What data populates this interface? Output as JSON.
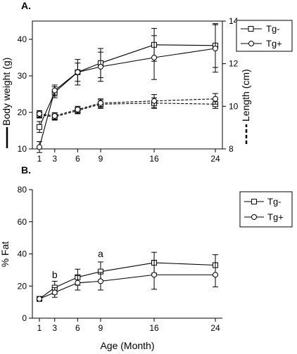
{
  "chart_data": [
    {
      "type": "line",
      "panel_label": "A.",
      "x": [
        1,
        3,
        6,
        9,
        16,
        24
      ],
      "xticks": [
        "1",
        "3",
        "6",
        "9",
        "16",
        "24"
      ],
      "xlabel": "",
      "ylabel_left": "Body weight (g)",
      "ylabel_right": "Length (cm)",
      "ylim_left": [
        10,
        45
      ],
      "ylim_right": [
        8,
        14
      ],
      "yticks_left": [
        "10",
        "20",
        "30",
        "40"
      ],
      "yticks_right": [
        "8",
        "10",
        "12",
        "14"
      ],
      "grid": false,
      "legend_position": "top-right",
      "legend": [
        "Tg-",
        "Tg+"
      ],
      "series": [
        {
          "name": "Tg-",
          "measure": "Body weight",
          "axis": "left",
          "style": "solid",
          "marker": "square",
          "values": [
            16,
            25.5,
            31,
            33.5,
            38.5,
            38.3
          ],
          "errors": [
            1.5,
            1.5,
            3.5,
            4,
            4.5,
            6
          ]
        },
        {
          "name": "Tg+",
          "measure": "Body weight",
          "axis": "left",
          "style": "solid",
          "marker": "circle",
          "values": [
            10.5,
            26,
            31,
            32.5,
            35,
            37.5
          ],
          "errors": [
            1.5,
            1.5,
            2.5,
            4,
            6,
            6.5
          ]
        },
        {
          "name": "Tg-",
          "measure": "Length",
          "axis": "right",
          "style": "dashed",
          "marker": "square",
          "values": [
            9.6,
            9.5,
            9.8,
            10.1,
            10.15,
            10.1
          ],
          "errors": [
            0.15,
            0.15,
            0.15,
            0.2,
            0.25,
            0.2
          ]
        },
        {
          "name": "Tg+",
          "measure": "Length",
          "axis": "right",
          "style": "dashed",
          "marker": "circle",
          "values": [
            9.65,
            9.55,
            9.85,
            10.15,
            10.25,
            10.35
          ],
          "errors": [
            0.15,
            0.15,
            0.15,
            0.2,
            0.3,
            0.25
          ]
        }
      ]
    },
    {
      "type": "line",
      "panel_label": "B.",
      "x": [
        1,
        3,
        6,
        9,
        16,
        24
      ],
      "xticks": [
        "1",
        "3",
        "6",
        "9",
        "16",
        "24"
      ],
      "xlabel": "Age (Month)",
      "ylabel": "% Fat",
      "ylim": [
        0,
        80
      ],
      "yticks": [
        "0",
        "20",
        "40",
        "60",
        "80"
      ],
      "grid": false,
      "legend_position": "top-right",
      "legend": [
        "Tg-",
        "Tg+"
      ],
      "annotations": [
        {
          "text": "b",
          "x": 3,
          "y": 25
        },
        {
          "text": "a",
          "x": 9,
          "y": 38
        }
      ],
      "series": [
        {
          "name": "Tg-",
          "marker": "square",
          "style": "solid",
          "values": [
            12,
            19,
            25.5,
            29,
            34.5,
            33
          ],
          "errors": [
            1.5,
            4,
            5,
            6,
            6.5,
            6.5
          ]
        },
        {
          "name": "Tg+",
          "marker": "circle",
          "style": "solid",
          "values": [
            12,
            16,
            22,
            23,
            27,
            27
          ],
          "errors": [
            1.5,
            3,
            4.5,
            5.5,
            9,
            7.5
          ]
        }
      ]
    }
  ]
}
